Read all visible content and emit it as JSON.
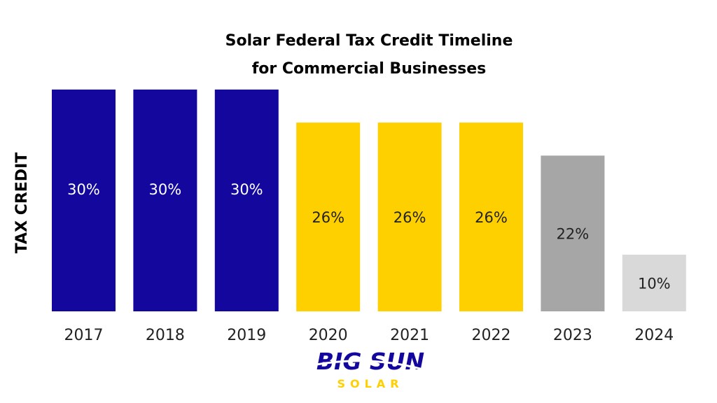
{
  "chart_data": {
    "type": "bar",
    "title": [
      "Solar Federal Tax Credit Timeline",
      "for Commercial Businesses"
    ],
    "xlabel": "",
    "ylabel": "TAX CREDIT",
    "categories": [
      "2017",
      "2018",
      "2019",
      "2020",
      "2021",
      "2022",
      "2023",
      "2024"
    ],
    "values": [
      30,
      30,
      30,
      26,
      26,
      26,
      22,
      10
    ],
    "data_labels": [
      "30%",
      "30%",
      "30%",
      "26%",
      "26%",
      "26%",
      "22%",
      "10%"
    ],
    "bar_colors": [
      "#13079e",
      "#13079e",
      "#13079e",
      "#ffd000",
      "#ffd000",
      "#ffd000",
      "#a6a6a6",
      "#d9d9d9"
    ],
    "label_colors": [
      "#ffffff",
      "#ffffff",
      "#ffffff",
      "#222222",
      "#222222",
      "#222222",
      "#222222",
      "#222222"
    ],
    "grid": false,
    "legend": "none"
  },
  "logo": {
    "line1": "BIG SUN",
    "line2": "SOLAR",
    "colors": {
      "primary": "#13079e",
      "accent": "#ffd000"
    }
  }
}
